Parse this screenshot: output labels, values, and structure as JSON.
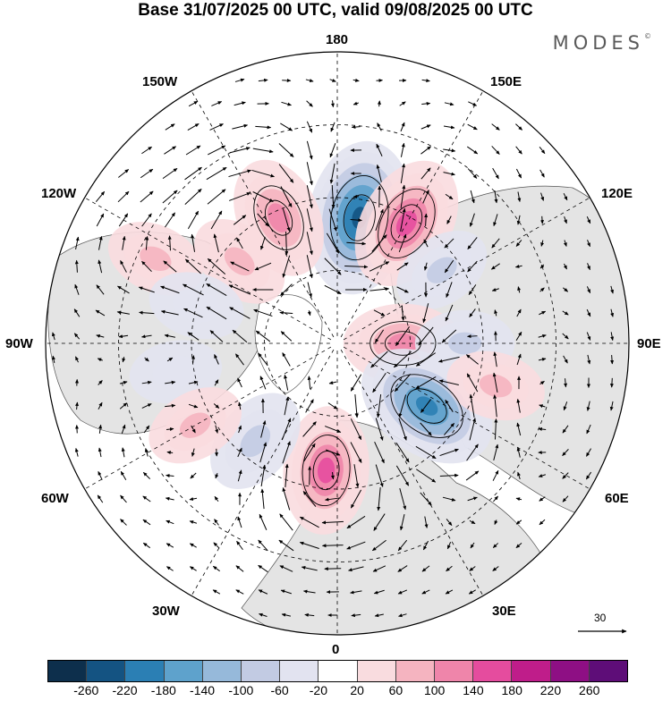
{
  "title": "Base 31/07/2025 00 UTC, valid 09/08/2025 00 UTC",
  "brand": "MODES",
  "brand_mark": "©",
  "longitude_labels": {
    "top": "180",
    "bottom": "0",
    "left": "90W",
    "right": "90E",
    "upper_left": "150W",
    "upper_right": "150E",
    "mid_upper_left": "120W",
    "mid_upper_right": "120E",
    "mid_lower_left": "60W",
    "mid_lower_right": "60E",
    "lower_left": "30W",
    "lower_right": "30E"
  },
  "reference_vector": {
    "label": "30"
  },
  "colorbar": {
    "ticks": [
      "-260",
      "-220",
      "-180",
      "-140",
      "-100",
      "-60",
      "-20",
      "20",
      "60",
      "100",
      "140",
      "180",
      "220",
      "260"
    ],
    "colors": [
      "#0d2f4c",
      "#145382",
      "#2b7fb4",
      "#5ea2cc",
      "#96b9da",
      "#c2cbe3",
      "#e2e3f0",
      "#ffffff",
      "#f9dcdf",
      "#f5b4c0",
      "#ef85aa",
      "#e54c9e",
      "#bf1d8a",
      "#8e0f84",
      "#5e0d78"
    ]
  },
  "anomalies": [
    {
      "lon": 170,
      "lat": 55,
      "value": -230
    },
    {
      "lon": 150,
      "lat": 52,
      "value": 170
    },
    {
      "lon": 205,
      "lat": 52,
      "value": 130
    },
    {
      "lon": 230,
      "lat": 55,
      "value": 70
    },
    {
      "lon": 125,
      "lat": 55,
      "value": -60
    },
    {
      "lon": 90,
      "lat": 72,
      "value": 120
    },
    {
      "lon": 90,
      "lat": 55,
      "value": -60
    },
    {
      "lon": 55,
      "lat": 60,
      "value": -200
    },
    {
      "lon": 75,
      "lat": 45,
      "value": 60
    },
    {
      "lon": 355,
      "lat": 55,
      "value": 150
    },
    {
      "lon": 320,
      "lat": 55,
      "value": -90
    },
    {
      "lon": 280,
      "lat": 45,
      "value": -40
    },
    {
      "lon": 300,
      "lat": 45,
      "value": 60
    },
    {
      "lon": 245,
      "lat": 35,
      "value": 60
    },
    {
      "lon": 255,
      "lat": 50,
      "value": -50
    }
  ]
}
